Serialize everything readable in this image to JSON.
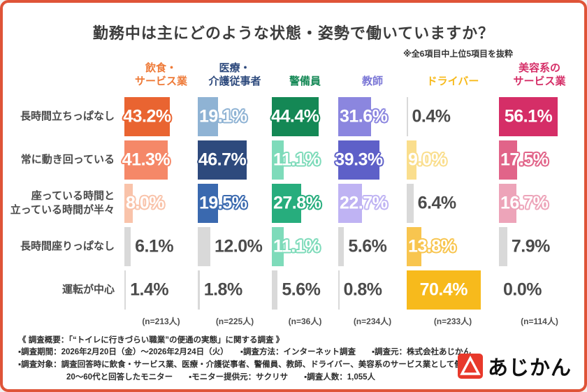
{
  "card": {
    "title": "勤務中は主にどのような状態・姿勢で働いていますか？",
    "note": "※全6項目中上位5項目を抜粋",
    "border_color": "#DF5438"
  },
  "chart_data": {
    "type": "bar",
    "orientation": "matrix-horizontal-bands",
    "title": "勤務中は主にどのような状態・姿勢で働いていますか？",
    "note": "※全6項目中上位5項目を抜粋",
    "unit": "%",
    "value_range": [
      0,
      100
    ],
    "grid": false,
    "gray": "#D9D9D9",
    "value_text_gray": "#4B4B4B",
    "categories": [
      "長時間立ちっぱなし",
      "常に動き回っている",
      "座っている時間と\n立っている時間が半々",
      "長時間座りっぱなし",
      "運転が中心"
    ],
    "series": [
      {
        "name": "飲食・\nサービス業",
        "header_color": "#EE7A38",
        "n_label": "(n=213人)",
        "values": [
          43.2,
          41.3,
          8.0,
          6.1,
          1.4
        ],
        "colors": [
          "#E96431",
          "#F58868",
          "#F9C3AA",
          "#D9D9D9",
          "#D9D9D9"
        ]
      },
      {
        "name": "医療・\n介護従事者",
        "header_color": "#2E4A7D",
        "n_label": "(n=225人)",
        "values": [
          19.1,
          46.7,
          19.5,
          12.0,
          1.8
        ],
        "colors": [
          "#8FB3D4",
          "#2E4A7D",
          "#3A69AF",
          "#D9D9D9",
          "#D9D9D9"
        ]
      },
      {
        "name": "警備員",
        "header_color": "#148855",
        "n_label": "(n=36人)",
        "values": [
          44.4,
          11.1,
          27.8,
          11.1,
          5.6
        ],
        "colors": [
          "#148855",
          "#7EDBBA",
          "#27AD7D",
          "#7EDBBA",
          "#D9D9D9"
        ]
      },
      {
        "name": "教師",
        "header_color": "#7A76D6",
        "n_label": "(n=234人)",
        "values": [
          31.6,
          39.3,
          22.7,
          5.6,
          0.8
        ],
        "colors": [
          "#8B86DF",
          "#5E60C8",
          "#BFB3F3",
          "#D9D9D9",
          "#D9D9D9"
        ]
      },
      {
        "name": "ドライバー",
        "header_color": "#F7BA1C",
        "n_label": "(n=233人)",
        "values": [
          0.4,
          9.0,
          6.4,
          13.8,
          70.4
        ],
        "colors": [
          "#D9D9D9",
          "#FADE8D",
          "#D9D9D9",
          "#F8C54F",
          "#F7BA1C"
        ]
      },
      {
        "name": "美容系の\nサービス業",
        "header_color": "#D52E67",
        "n_label": "(n=114人)",
        "values": [
          56.1,
          17.5,
          16.7,
          7.9,
          0.0
        ],
        "colors": [
          "#D52E67",
          "#E16489",
          "#EDA4B9",
          "#D9D9D9",
          "#D9D9D9"
        ]
      }
    ]
  },
  "footer": {
    "lines": [
      "《 調査概要：「“トイレに行きづらい職業”の便通の実態」に関する調査 》",
      "▪調査期間：2026年2月20日（金）～2026年2月24日（火）　　▪調査方法：インターネット調査　　▪調査元：株式会社あじかん",
      "▪調査対象：調査回答時に飲食・サービス業、医療・介護従事者、警備員、教師、ドライバー、美容系のサービス業として働く",
      "　　　　　　20～60代と回答したモニター　　▪モニター提供元：サクリサ　　▪調査人数：1,055人"
    ]
  },
  "logo": {
    "text": "あじかん"
  }
}
